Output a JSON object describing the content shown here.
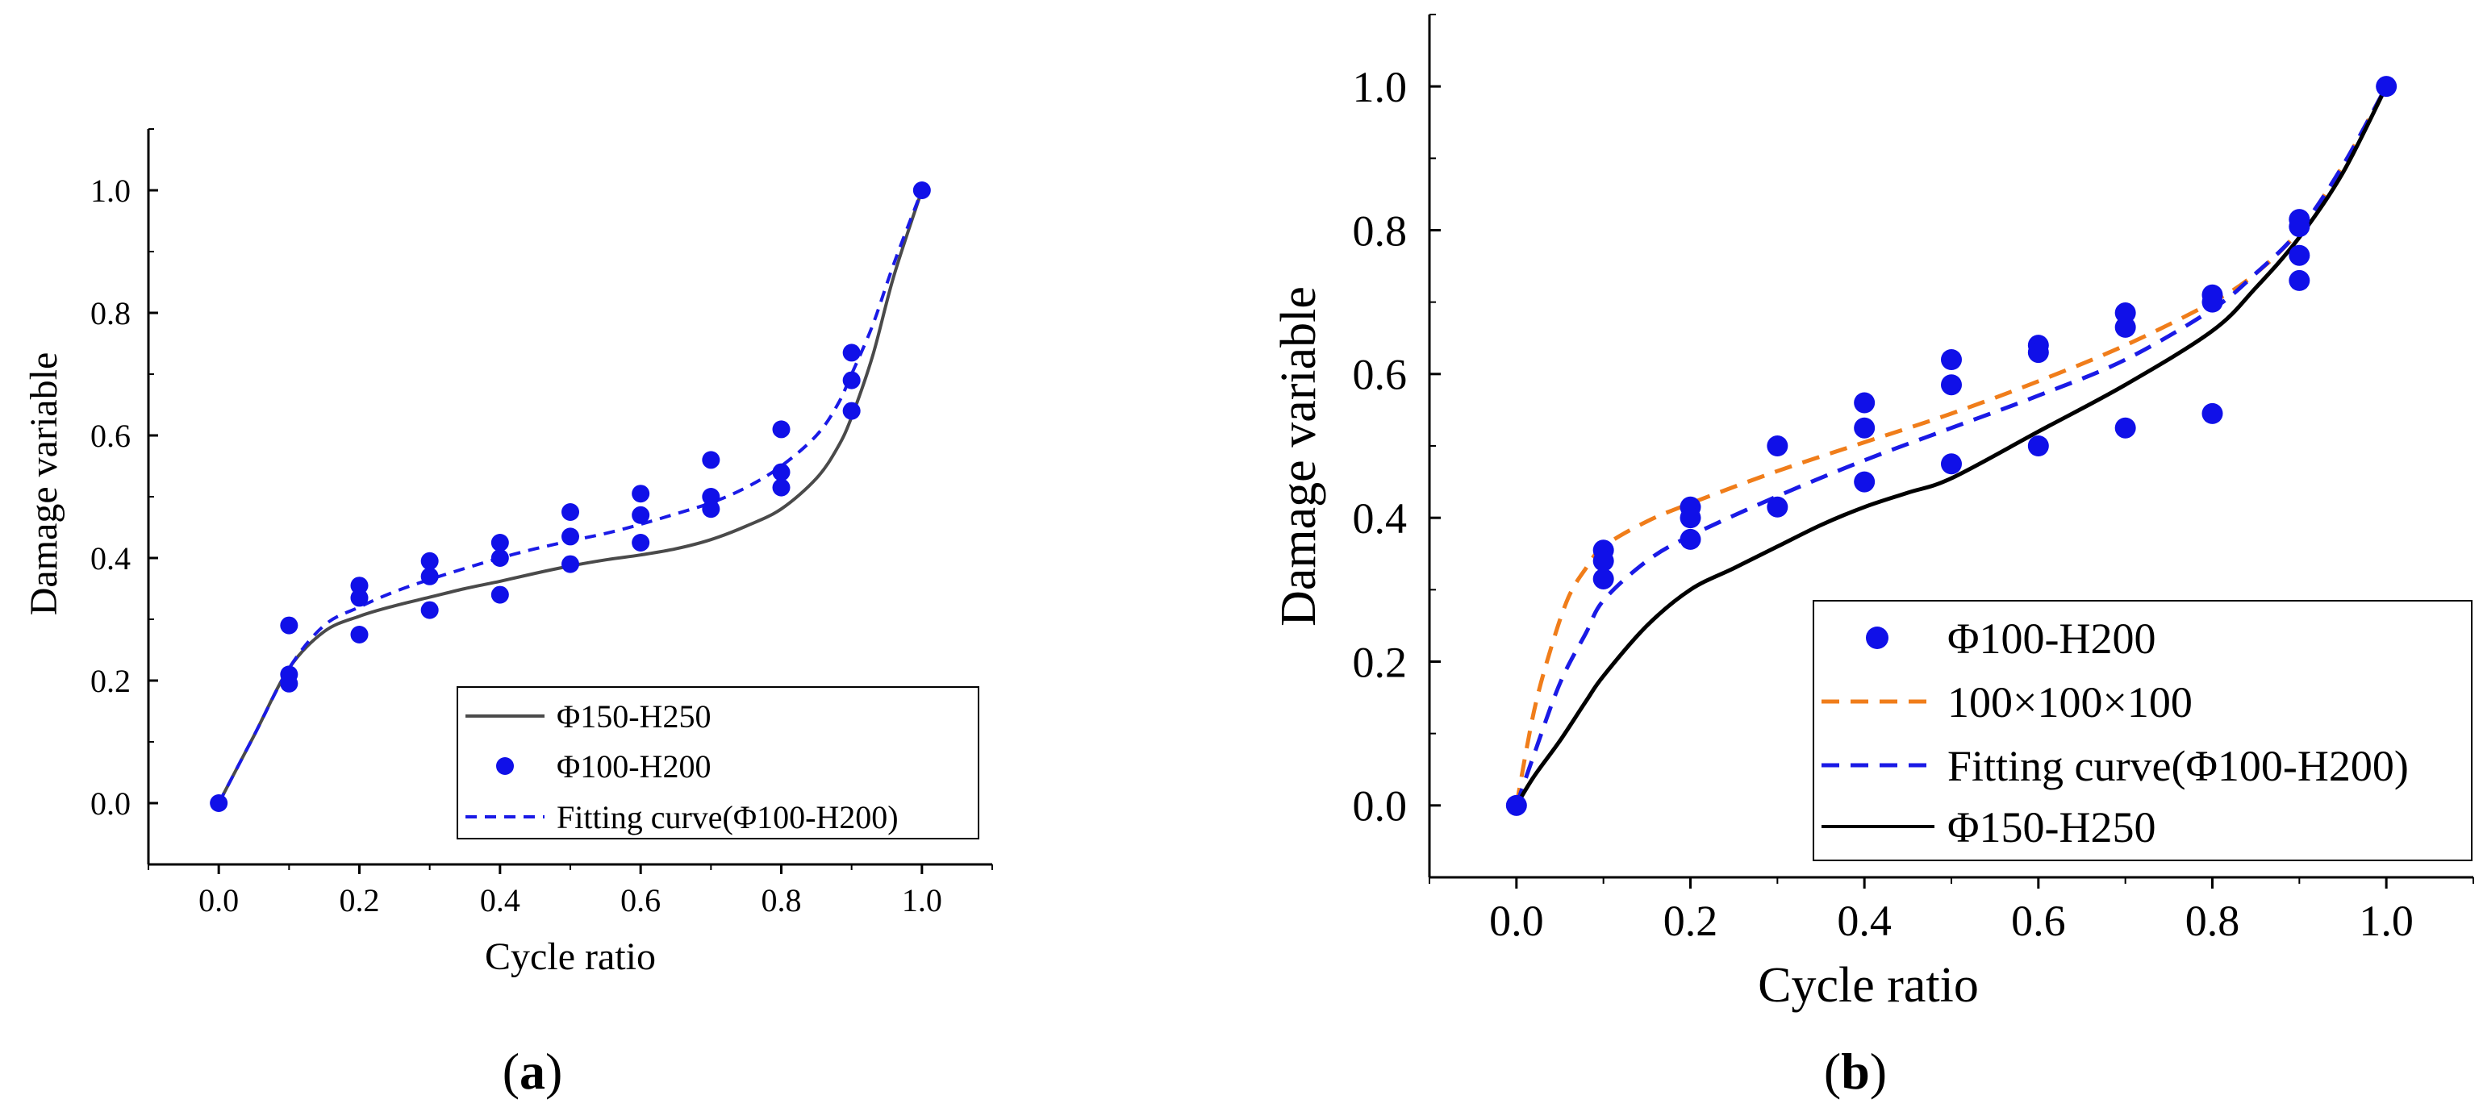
{
  "colors": {
    "point": "#1010e8",
    "fit_blue": "#1a1ae6",
    "gray_line": "#4a4a4a",
    "black_line": "#000000",
    "orange": "#f07d1a",
    "axis": "#000000"
  },
  "chart_data": [
    {
      "id": "a",
      "type": "scatter",
      "panel_label_open": "(",
      "panel_label_letter": "a",
      "panel_label_close": ")",
      "xlabel": "Cycle ratio",
      "ylabel": "Damage variable",
      "xlim": [
        -0.1,
        1.1
      ],
      "ylim": [
        -0.1,
        1.1
      ],
      "xticks": [
        "0.0",
        "0.2",
        "0.4",
        "0.6",
        "0.8",
        "1.0"
      ],
      "yticks": [
        "0.0",
        "0.2",
        "0.4",
        "0.6",
        "0.8",
        "1.0"
      ],
      "xtick_values": [
        0,
        0.2,
        0.4,
        0.6,
        0.8,
        1.0
      ],
      "ytick_values": [
        0,
        0.2,
        0.4,
        0.6,
        0.8,
        1.0
      ],
      "legend_position": "bottom-right",
      "series": [
        {
          "name": "Φ150-H250",
          "kind": "line",
          "style": "solid",
          "color_key": "gray_line",
          "x": [
            0,
            0.05,
            0.1,
            0.15,
            0.2,
            0.25,
            0.3,
            0.35,
            0.4,
            0.45,
            0.5,
            0.55,
            0.6,
            0.65,
            0.7,
            0.75,
            0.8,
            0.85,
            0.88,
            0.9,
            0.93,
            0.96,
            1.0
          ],
          "y": [
            0,
            0.11,
            0.22,
            0.28,
            0.305,
            0.322,
            0.336,
            0.35,
            0.362,
            0.375,
            0.387,
            0.397,
            0.405,
            0.415,
            0.43,
            0.452,
            0.48,
            0.53,
            0.58,
            0.63,
            0.73,
            0.86,
            1.0
          ]
        },
        {
          "name": "Φ100-H200",
          "kind": "points",
          "color_key": "point",
          "x": [
            0,
            0.1,
            0.1,
            0.1,
            0.2,
            0.2,
            0.2,
            0.3,
            0.3,
            0.3,
            0.4,
            0.4,
            0.4,
            0.5,
            0.5,
            0.5,
            0.6,
            0.6,
            0.6,
            0.7,
            0.7,
            0.7,
            0.8,
            0.8,
            0.8,
            0.9,
            0.9,
            0.9,
            1.0
          ],
          "y": [
            0,
            0.29,
            0.21,
            0.195,
            0.355,
            0.335,
            0.275,
            0.395,
            0.37,
            0.315,
            0.425,
            0.4,
            0.34,
            0.475,
            0.435,
            0.39,
            0.505,
            0.47,
            0.425,
            0.56,
            0.5,
            0.48,
            0.61,
            0.54,
            0.515,
            0.735,
            0.69,
            0.64,
            1.0
          ]
        },
        {
          "name": "Fitting curve(Φ100-H200)",
          "kind": "line",
          "style": "dashed",
          "color_key": "fit_blue",
          "x": [
            0,
            0.05,
            0.1,
            0.15,
            0.2,
            0.25,
            0.3,
            0.35,
            0.4,
            0.45,
            0.5,
            0.55,
            0.6,
            0.65,
            0.7,
            0.75,
            0.8,
            0.85,
            0.88,
            0.9,
            0.93,
            0.96,
            1.0
          ],
          "y": [
            0,
            0.11,
            0.22,
            0.29,
            0.32,
            0.345,
            0.365,
            0.383,
            0.4,
            0.415,
            0.428,
            0.44,
            0.455,
            0.472,
            0.49,
            0.515,
            0.55,
            0.6,
            0.65,
            0.7,
            0.78,
            0.88,
            1.0
          ]
        }
      ]
    },
    {
      "id": "b",
      "type": "scatter",
      "panel_label_open": "(",
      "panel_label_letter": "b",
      "panel_label_close": ")",
      "xlabel": "Cycle ratio",
      "ylabel": "Damage variable",
      "xlim": [
        -0.1,
        1.1
      ],
      "ylim": [
        -0.1,
        1.1
      ],
      "xticks": [
        "0.0",
        "0.2",
        "0.4",
        "0.6",
        "0.8",
        "1.0"
      ],
      "yticks": [
        "0.0",
        "0.2",
        "0.4",
        "0.6",
        "0.8",
        "1.0"
      ],
      "xtick_values": [
        0,
        0.2,
        0.4,
        0.6,
        0.8,
        1.0
      ],
      "ytick_values": [
        0,
        0.2,
        0.4,
        0.6,
        0.8,
        1.0
      ],
      "legend_position": "bottom-right",
      "series": [
        {
          "name": "Φ100-H200",
          "kind": "points",
          "color_key": "point",
          "x": [
            0,
            0.1,
            0.1,
            0.1,
            0.2,
            0.2,
            0.2,
            0.3,
            0.3,
            0.4,
            0.4,
            0.4,
            0.5,
            0.5,
            0.5,
            0.6,
            0.6,
            0.6,
            0.7,
            0.7,
            0.7,
            0.8,
            0.8,
            0.8,
            0.9,
            0.9,
            0.9,
            0.9,
            1.0
          ],
          "y": [
            0,
            0.355,
            0.34,
            0.315,
            0.415,
            0.4,
            0.37,
            0.5,
            0.415,
            0.56,
            0.525,
            0.45,
            0.62,
            0.585,
            0.475,
            0.64,
            0.63,
            0.5,
            0.685,
            0.665,
            0.525,
            0.71,
            0.7,
            0.545,
            0.815,
            0.805,
            0.765,
            0.73,
            1.0
          ]
        },
        {
          "name": "100×100×100",
          "kind": "line",
          "style": "dashed",
          "color_key": "orange",
          "x": [
            0,
            0.02,
            0.04,
            0.06,
            0.08,
            0.1,
            0.15,
            0.2,
            0.3,
            0.4,
            0.5,
            0.6,
            0.7,
            0.8,
            0.85,
            0.9,
            0.95,
            1.0
          ],
          "y": [
            0,
            0.13,
            0.22,
            0.29,
            0.33,
            0.36,
            0.395,
            0.42,
            0.465,
            0.505,
            0.545,
            0.59,
            0.64,
            0.7,
            0.74,
            0.8,
            0.89,
            1.0
          ]
        },
        {
          "name": "Fitting curve(Φ100-H200)",
          "kind": "line",
          "style": "dashed",
          "color_key": "fit_blue",
          "x": [
            0,
            0.02,
            0.05,
            0.08,
            0.1,
            0.15,
            0.2,
            0.3,
            0.4,
            0.5,
            0.6,
            0.7,
            0.8,
            0.85,
            0.9,
            0.95,
            1.0
          ],
          "y": [
            0,
            0.07,
            0.17,
            0.24,
            0.285,
            0.34,
            0.375,
            0.43,
            0.48,
            0.525,
            0.57,
            0.62,
            0.69,
            0.74,
            0.8,
            0.89,
            1.0
          ]
        },
        {
          "name": "Φ150-H250",
          "kind": "line",
          "style": "solid",
          "color_key": "black_line",
          "x": [
            0,
            0.02,
            0.05,
            0.08,
            0.1,
            0.15,
            0.2,
            0.25,
            0.3,
            0.35,
            0.4,
            0.45,
            0.5,
            0.6,
            0.7,
            0.8,
            0.85,
            0.9,
            0.95,
            1.0
          ],
          "y": [
            0,
            0.04,
            0.09,
            0.145,
            0.18,
            0.25,
            0.3,
            0.33,
            0.36,
            0.39,
            0.415,
            0.435,
            0.455,
            0.52,
            0.585,
            0.66,
            0.72,
            0.79,
            0.88,
            1.0
          ]
        }
      ]
    }
  ]
}
